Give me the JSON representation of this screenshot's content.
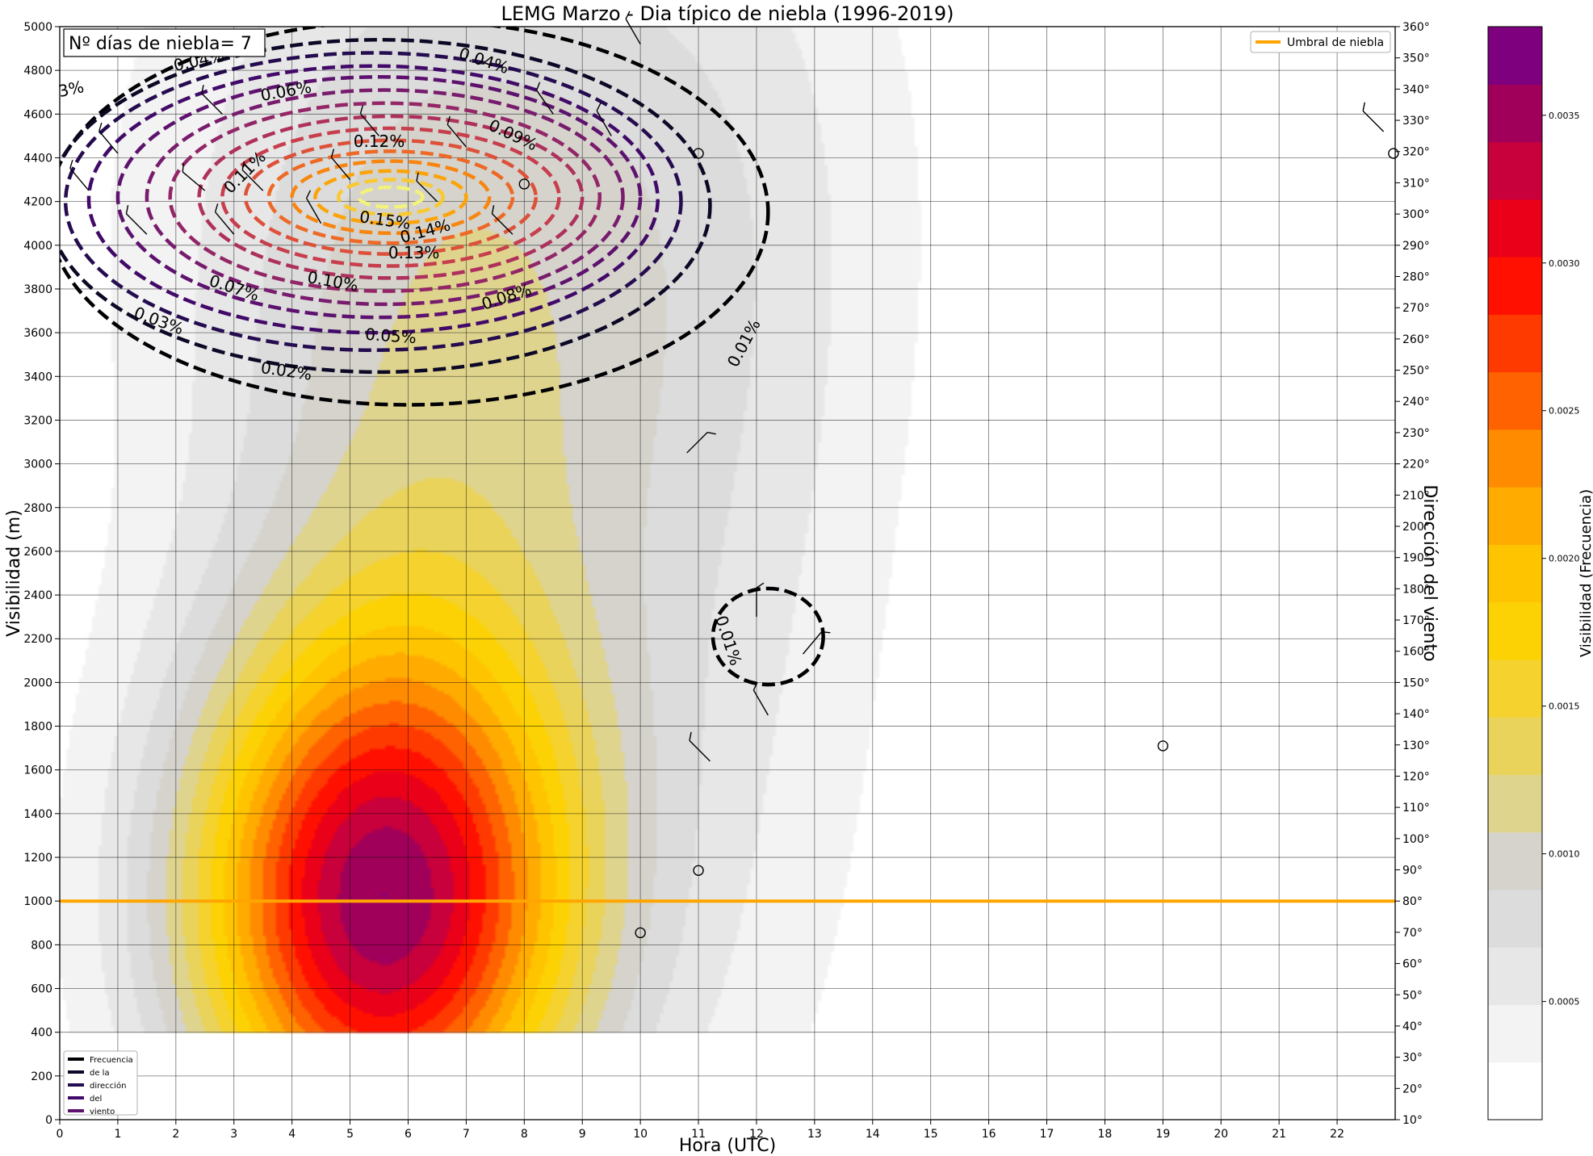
{
  "chart_data": {
    "type": "heatmap",
    "title": "LEMG Marzo  - Dia típico de niebla (1996-2019)",
    "xlabel": "Hora (UTC)",
    "ylabel": "Visibilidad (m)",
    "y2label": "Dirección del viento",
    "colorbar_label": "Visibilidad (Frecuencia)",
    "xlim": [
      0,
      23
    ],
    "ylim": [
      0,
      5000
    ],
    "y2lim": [
      10,
      360
    ],
    "x_ticks": [
      "0",
      "1",
      "2",
      "3",
      "4",
      "5",
      "6",
      "7",
      "8",
      "9",
      "10",
      "11",
      "12",
      "13",
      "14",
      "15",
      "16",
      "17",
      "18",
      "19",
      "20",
      "21",
      "22"
    ],
    "y_ticks": [
      "0",
      "200",
      "400",
      "600",
      "800",
      "1000",
      "1200",
      "1400",
      "1600",
      "1800",
      "2000",
      "2200",
      "2400",
      "2600",
      "2800",
      "3000",
      "3200",
      "3400",
      "3600",
      "3800",
      "4000",
      "4200",
      "4400",
      "4600",
      "4800",
      "5000"
    ],
    "y2_ticks": [
      "10°",
      "20°",
      "30°",
      "40°",
      "50°",
      "60°",
      "70°",
      "80°",
      "90°",
      "100°",
      "110°",
      "120°",
      "130°",
      "140°",
      "150°",
      "160°",
      "170°",
      "180°",
      "190°",
      "200°",
      "210°",
      "220°",
      "230°",
      "240°",
      "250°",
      "260°",
      "270°",
      "280°",
      "290°",
      "300°",
      "310°",
      "320°",
      "330°",
      "340°",
      "350°",
      "360°"
    ],
    "colorbar_ticks": [
      {
        "value": 0.0005,
        "label": "0.0005"
      },
      {
        "value": 0.001,
        "label": "0.0010"
      },
      {
        "value": 0.0015,
        "label": "0.0015"
      },
      {
        "value": 0.002,
        "label": "0.0020"
      },
      {
        "value": 0.0025,
        "label": "0.0025"
      },
      {
        "value": 0.003,
        "label": "0.0030"
      },
      {
        "value": 0.0035,
        "label": "0.0035"
      }
    ],
    "colorbar_range": [
      0.0001,
      0.0038
    ],
    "colorbar_colors": [
      "#ffffff",
      "#f3f3f3",
      "#e7e7e7",
      "#dcdcdc",
      "#d5d3cc",
      "#dfd48e",
      "#ead35a",
      "#f5d22d",
      "#fcd205",
      "#ffc400",
      "#ffab00",
      "#ff8c00",
      "#ff6200",
      "#ff3a00",
      "#ff1000",
      "#ea0019",
      "#c8003b",
      "#a0005a",
      "#7e007e"
    ],
    "visibility_kde": [
      {
        "x": 5.5,
        "y": 950,
        "sx": 2.3,
        "sy": 850,
        "w": 1.0
      },
      {
        "x": 6.5,
        "y": 2600,
        "sx": 2.8,
        "sy": 1600,
        "w": 0.25
      },
      {
        "x": 7.5,
        "y": 4400,
        "sx": 4.2,
        "sy": 1200,
        "w": 0.15
      },
      {
        "x": 11.5,
        "y": 2700,
        "sx": 2.3,
        "sy": 2400,
        "w": 0.1
      }
    ],
    "kde_ymin": 400,
    "threshold": {
      "y": 1000,
      "name": "Umbral de niebla",
      "color": "#ffa500"
    },
    "wind_freq_contours": [
      {
        "level": 0.01,
        "label": "0.01%",
        "color": "#000004",
        "cx": 6.0,
        "cy": 4150,
        "rx": 6.2,
        "ry": 880
      },
      {
        "level": 0.02,
        "label": "0.02%",
        "color": "#0c0826",
        "cx": 5.5,
        "cy": 4180,
        "rx": 5.7,
        "ry": 760
      },
      {
        "level": 0.03,
        "label": "0.03%",
        "color": "#240c4f",
        "cx": 5.4,
        "cy": 4200,
        "rx": 5.3,
        "ry": 680
      },
      {
        "level": 0.04,
        "label": "0.04%",
        "color": "#420a68",
        "cx": 5.4,
        "cy": 4210,
        "rx": 4.9,
        "ry": 610
      },
      {
        "level": 0.05,
        "label": "0.05%",
        "color": "#5d126e",
        "cx": 5.5,
        "cy": 4220,
        "rx": 4.5,
        "ry": 550
      },
      {
        "level": 0.06,
        "label": "0.06%",
        "color": "#781c6d",
        "cx": 5.6,
        "cy": 4220,
        "rx": 4.1,
        "ry": 490
      },
      {
        "level": 0.07,
        "label": "0.07%",
        "color": "#932667",
        "cx": 5.6,
        "cy": 4220,
        "rx": 3.7,
        "ry": 430
      },
      {
        "level": 0.08,
        "label": "0.08%",
        "color": "#ae305c",
        "cx": 5.7,
        "cy": 4220,
        "rx": 3.3,
        "ry": 370
      },
      {
        "level": 0.09,
        "label": "0.09%",
        "color": "#c73e4c",
        "cx": 5.7,
        "cy": 4220,
        "rx": 2.9,
        "ry": 315
      },
      {
        "level": 0.1,
        "label": "0.10%",
        "color": "#dd513a",
        "cx": 5.7,
        "cy": 4220,
        "rx": 2.5,
        "ry": 260
      },
      {
        "level": 0.11,
        "label": "0.11%",
        "color": "#ed6925",
        "cx": 5.7,
        "cy": 4220,
        "rx": 2.1,
        "ry": 210
      },
      {
        "level": 0.12,
        "label": "0.12%",
        "color": "#f8850f",
        "cx": 5.7,
        "cy": 4220,
        "rx": 1.7,
        "ry": 165
      },
      {
        "level": 0.13,
        "label": "0.13%",
        "color": "#fba40a",
        "cx": 5.7,
        "cy": 4220,
        "rx": 1.3,
        "ry": 120
      },
      {
        "level": 0.14,
        "label": "0.14%",
        "color": "#f9c932",
        "cx": 5.7,
        "cy": 4220,
        "rx": 0.9,
        "ry": 80
      },
      {
        "level": 0.15,
        "label": "0.15%",
        "color": "#f2f27d",
        "cx": 5.7,
        "cy": 4220,
        "rx": 0.55,
        "ry": 45
      },
      {
        "level": 0.01,
        "label": "0.01%",
        "color": "#000004",
        "cx": 12.2,
        "cy": 2210,
        "rx": 0.95,
        "ry": 220
      }
    ],
    "contour_labels": [
      {
        "text": "0.01%",
        "x": 11.8,
        "y": 3550,
        "rot": -62
      },
      {
        "text": "0.02%",
        "x": 3.9,
        "y": 3420,
        "rot": 8
      },
      {
        "text": "0.03%",
        "x": 1.7,
        "y": 3650,
        "rot": 20
      },
      {
        "text": "0.04%",
        "x": 2.4,
        "y": 4840,
        "rot": -12
      },
      {
        "text": "0.04%",
        "x": 7.3,
        "y": 4840,
        "rot": 18
      },
      {
        "text": "0.05%",
        "x": 5.7,
        "y": 3580,
        "rot": 4
      },
      {
        "text": "0.06%",
        "x": 3.9,
        "y": 4700,
        "rot": -10
      },
      {
        "text": "0.07%",
        "x": 3.0,
        "y": 3800,
        "rot": 18
      },
      {
        "text": "0.08%",
        "x": 7.7,
        "y": 3760,
        "rot": -18
      },
      {
        "text": "0.09%",
        "x": 7.8,
        "y": 4500,
        "rot": 25
      },
      {
        "text": "0.10%",
        "x": 4.7,
        "y": 3830,
        "rot": 10
      },
      {
        "text": "0.11%",
        "x": 3.2,
        "y": 4330,
        "rot": -45
      },
      {
        "text": "0.12%",
        "x": 5.5,
        "y": 4470,
        "rot": 0
      },
      {
        "text": "0.13%",
        "x": 6.1,
        "y": 3960,
        "rot": 0
      },
      {
        "text": "0.14%",
        "x": 6.3,
        "y": 4060,
        "rot": -15
      },
      {
        "text": "0.15%",
        "x": 5.6,
        "y": 4110,
        "rot": 8
      },
      {
        "text": "3%",
        "x": 0.2,
        "y": 4710,
        "rot": -12
      },
      {
        "text": "0.01%",
        "x": 11.5,
        "y": 2190,
        "rot": 72
      }
    ],
    "wind_barbs": [
      {
        "x": 0.5,
        "y": 4250,
        "rot": -40
      },
      {
        "x": 1.5,
        "y": 4050,
        "rot": -45
      },
      {
        "x": 1.0,
        "y": 4420,
        "rot": -40
      },
      {
        "x": 2.5,
        "y": 4250,
        "rot": -50
      },
      {
        "x": 3.0,
        "y": 4050,
        "rot": -40
      },
      {
        "x": 2.8,
        "y": 4600,
        "rot": -45
      },
      {
        "x": 3.5,
        "y": 4250,
        "rot": -45
      },
      {
        "x": 4.5,
        "y": 4100,
        "rot": -30
      },
      {
        "x": 5.0,
        "y": 4300,
        "rot": -40
      },
      {
        "x": 5.5,
        "y": 4500,
        "rot": -40
      },
      {
        "x": 6.5,
        "y": 4200,
        "rot": -45
      },
      {
        "x": 7.0,
        "y": 4450,
        "rot": -40
      },
      {
        "x": 7.8,
        "y": 4050,
        "rot": -45
      },
      {
        "x": 8.5,
        "y": 4600,
        "rot": -35
      },
      {
        "x": 9.5,
        "y": 4500,
        "rot": -30
      },
      {
        "x": 10.0,
        "y": 4920,
        "rot": -30
      },
      {
        "x": 10.8,
        "y": 3050,
        "rot": 45
      },
      {
        "x": 12.0,
        "y": 2300,
        "rot": 0
      },
      {
        "x": 12.8,
        "y": 2130,
        "rot": 40
      },
      {
        "x": 12.2,
        "y": 1850,
        "rot": -30
      },
      {
        "x": 11.2,
        "y": 1640,
        "rot": -45
      },
      {
        "x": 22.8,
        "y": 4520,
        "rot": -45
      }
    ],
    "calms": [
      {
        "x": 11.0,
        "y": 4420
      },
      {
        "x": 8.0,
        "y": 4280
      },
      {
        "x": 22.97,
        "y": 4420
      },
      {
        "x": 19.0,
        "y": 1710
      },
      {
        "x": 11.0,
        "y": 1140
      },
      {
        "x": 10.0,
        "y": 855
      }
    ],
    "legend_wind": {
      "entries": [
        "Frecuencia",
        "de  la",
        "dirección",
        "del",
        "viento"
      ],
      "colors": [
        "#000004",
        "#0c0826",
        "#240c4f",
        "#420a68",
        "#5d126e"
      ],
      "placement": "lower-left"
    },
    "legend_threshold_placement": "upper-right",
    "annotation": "Nº días de niebla= 7"
  }
}
